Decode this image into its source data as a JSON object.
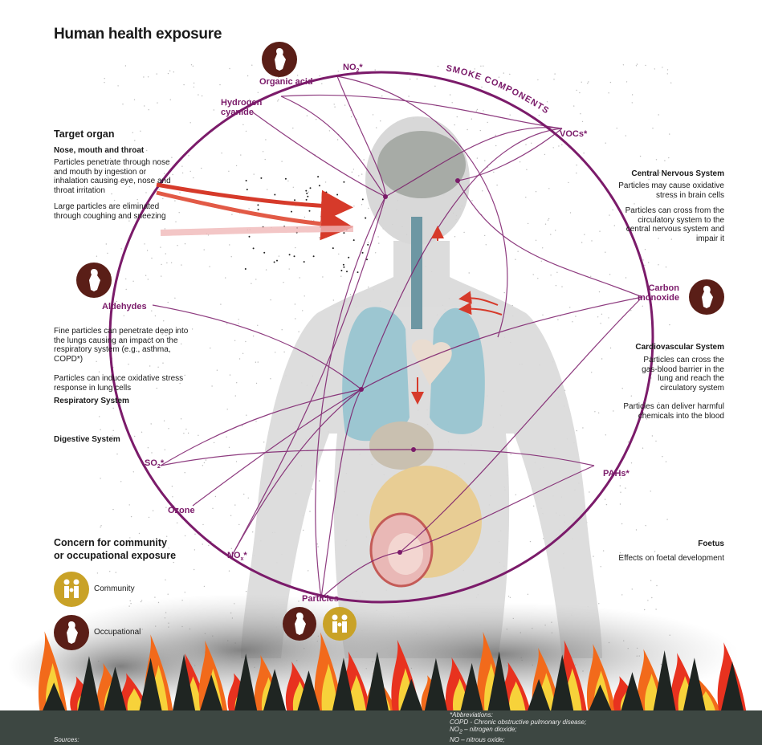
{
  "title": "Human health exposure",
  "target_organ": {
    "heading": "Target organ",
    "nose": {
      "heading": "Nose, mouth and throat",
      "text1": "Particles penetrate through nose and mouth by ingestion or inhalation causing eye, nose and throat irritation",
      "text2": "Large particles are eliminated through coughing and sneezing"
    },
    "respiratory": {
      "text1": "Fine particles can penetrate deep into the lungs causing an impact on the respiratory system (e.g., asthma, COPD*)",
      "text2": "Particles can induce oxidative stress response in lung cells",
      "heading": "Respiratory System"
    },
    "digestive": {
      "heading": "Digestive System"
    }
  },
  "cns": {
    "heading": "Central Nervous System",
    "text1": "Particles may cause oxidative stress in brain cells",
    "text2": "Particles can cross from the circulatory system to the central nervous system and impair it"
  },
  "cardio": {
    "heading": "Cardiovascular System",
    "text1": "Particles can cross the gas-blood barrier in the lung and reach the circulatory system",
    "text2": "Particles can deliver harmful chemicals into the blood"
  },
  "foetus": {
    "heading": "Foetus",
    "text": "Effects on foetal development"
  },
  "smoke_components": {
    "arc_label": "SMOKE COMPONENTS",
    "no2": "NO",
    "no2_sub": "2",
    "no2_star": "*",
    "organic_acid": "Organic acid",
    "hydrogen_cyanide_1": "Hydrogen",
    "hydrogen_cyanide_2": "cyanide",
    "vocs": "VOCs*",
    "aldehydes": "Aldehydes",
    "carbon_monoxide_1": "Carbon",
    "carbon_monoxide_2": "monoxide",
    "so2": "SO",
    "so2_sub": "2",
    "so2_star": "*",
    "ozone": "Ozone",
    "nox": "NO",
    "nox_sub": "x",
    "nox_star": "*",
    "pahs": "PAHs*",
    "particles": "Particles"
  },
  "legend": {
    "heading_1": "Concern for community",
    "heading_2": "or occupational exposure",
    "community": "Community",
    "occupational": "Occupational"
  },
  "footer": {
    "sources": "Sources:",
    "abbrev_heading": "*Abbreviations:",
    "abbrev_1": "COPD - Chronic obstructive pulmonary disease;",
    "abbrev_2a": "NO",
    "abbrev_2sub": "2",
    "abbrev_2b": " – nitrogen dioxide;",
    "abbrev_3a": "NO",
    "abbrev_3b": " – nitrous oxide;"
  },
  "colors": {
    "purple": "#7b1b6a",
    "arrow_red": "#d63a2a",
    "icon_dark": "#5a1e17",
    "icon_gold": "#c9a227",
    "ground": "#3d4742"
  }
}
